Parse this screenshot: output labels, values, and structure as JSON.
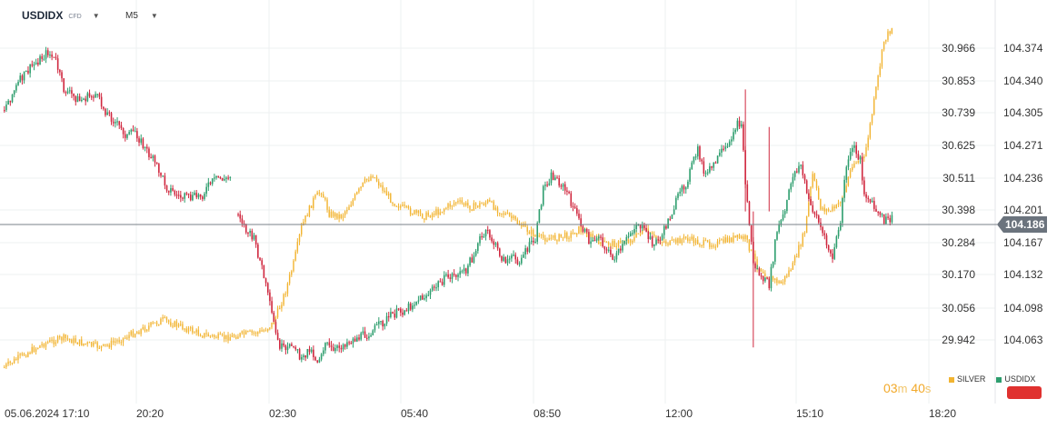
{
  "header": {
    "symbol": "USDIDX",
    "symbol_type": "CFD",
    "timeframe": "M5"
  },
  "legend": [
    {
      "name": "SILVER",
      "color": "#f2b431"
    },
    {
      "name": "USDIDX",
      "color": "#2e9e6e"
    }
  ],
  "timer": {
    "minutes": "03",
    "min_unit": "m",
    "seconds": "40",
    "sec_unit": "s"
  },
  "current_price_label": "104.186",
  "colors": {
    "up": "#2e9e6e",
    "down": "#d0283f",
    "silver": "#f2b431",
    "accent_red": "#e0312f"
  },
  "chart_data": {
    "type": "candlestick",
    "x_tick_labels": [
      "05.06.2024  17:10",
      "20:20",
      "02:30",
      "05:40",
      "08:50",
      "12:00",
      "15:10",
      "18:20"
    ],
    "left_axis": {
      "series": "SILVER",
      "ticks": [
        "30.966",
        "30.853",
        "30.739",
        "30.625",
        "30.511",
        "30.398",
        "30.284",
        "30.170",
        "30.056",
        "29.942"
      ]
    },
    "right_axis": {
      "series": "USDIDX",
      "ticks": [
        "104.374",
        "104.340",
        "104.305",
        "104.271",
        "104.236",
        "104.201",
        "104.167",
        "104.132",
        "104.098",
        "104.063"
      ]
    },
    "ylim_usdidx": [
      104.04,
      104.4
    ],
    "current_price": 104.186,
    "grid": true,
    "legend_position": "bottom-right",
    "series": [
      {
        "name": "USDIDX",
        "axis": "right",
        "style": "candles",
        "path": [
          [
            0,
            104.31
          ],
          [
            8,
            104.34
          ],
          [
            14,
            104.355
          ],
          [
            22,
            104.37
          ],
          [
            26,
            104.36
          ],
          [
            30,
            104.33
          ],
          [
            38,
            104.318
          ],
          [
            46,
            104.325
          ],
          [
            50,
            104.31
          ],
          [
            54,
            104.3
          ],
          [
            58,
            104.29
          ],
          [
            62,
            104.28
          ],
          [
            66,
            104.286
          ],
          [
            70,
            104.27
          ],
          [
            74,
            104.258
          ],
          [
            78,
            104.244
          ],
          [
            82,
            104.226
          ],
          [
            88,
            104.216
          ],
          [
            94,
            104.214
          ],
          [
            100,
            104.218
          ],
          [
            104,
            104.23
          ],
          [
            108,
            104.236
          ],
          [
            112,
            104.234
          ],
          [
            114,
            104.237
          ],
          [
            116,
            null
          ],
          [
            118,
            104.2
          ],
          [
            122,
            104.18
          ],
          [
            126,
            104.17
          ],
          [
            130,
            104.14
          ],
          [
            134,
            104.1
          ],
          [
            138,
            104.06
          ],
          [
            142,
            104.05
          ],
          [
            146,
            104.06
          ],
          [
            150,
            104.04
          ],
          [
            154,
            104.055
          ],
          [
            158,
            104.04
          ],
          [
            162,
            104.06
          ],
          [
            166,
            104.05
          ],
          [
            172,
            104.06
          ],
          [
            178,
            104.065
          ],
          [
            184,
            104.07
          ],
          [
            190,
            104.08
          ],
          [
            196,
            104.09
          ],
          [
            202,
            104.095
          ],
          [
            208,
            104.105
          ],
          [
            214,
            104.112
          ],
          [
            220,
            104.125
          ],
          [
            226,
            104.132
          ],
          [
            232,
            104.135
          ],
          [
            236,
            104.15
          ],
          [
            240,
            104.17
          ],
          [
            244,
            104.178
          ],
          [
            248,
            104.162
          ],
          [
            252,
            104.148
          ],
          [
            256,
            104.15
          ],
          [
            260,
            104.148
          ],
          [
            264,
            104.16
          ],
          [
            268,
            104.17
          ],
          [
            272,
            104.225
          ],
          [
            276,
            104.238
          ],
          [
            280,
            104.232
          ],
          [
            284,
            104.22
          ],
          [
            288,
            104.2
          ],
          [
            292,
            104.182
          ],
          [
            296,
            104.165
          ],
          [
            300,
            104.176
          ],
          [
            304,
            104.158
          ],
          [
            308,
            104.15
          ],
          [
            312,
            104.162
          ],
          [
            316,
            104.178
          ],
          [
            320,
            104.188
          ],
          [
            324,
            104.175
          ],
          [
            328,
            104.165
          ],
          [
            332,
            104.175
          ],
          [
            336,
            104.195
          ],
          [
            340,
            104.215
          ],
          [
            344,
            104.23
          ],
          [
            348,
            104.255
          ],
          [
            350,
            104.265
          ],
          [
            354,
            104.238
          ],
          [
            358,
            104.25
          ],
          [
            362,
            104.262
          ],
          [
            366,
            104.27
          ],
          [
            368,
            104.288
          ],
          [
            372,
            104.296
          ],
          [
            374,
            104.23
          ],
          [
            378,
            104.145
          ],
          [
            382,
            104.13
          ],
          [
            386,
            104.122
          ],
          [
            390,
            104.18
          ],
          [
            394,
            104.2
          ],
          [
            398,
            104.24
          ],
          [
            402,
            104.25
          ],
          [
            406,
            104.21
          ],
          [
            410,
            104.195
          ],
          [
            414,
            104.17
          ],
          [
            418,
            104.15
          ],
          [
            422,
            104.19
          ],
          [
            424,
            104.235
          ],
          [
            428,
            104.27
          ],
          [
            432,
            104.255
          ],
          [
            434,
            104.22
          ],
          [
            440,
            104.2
          ],
          [
            444,
            104.19
          ],
          [
            448,
            104.192
          ]
        ]
      }
    ]
  }
}
